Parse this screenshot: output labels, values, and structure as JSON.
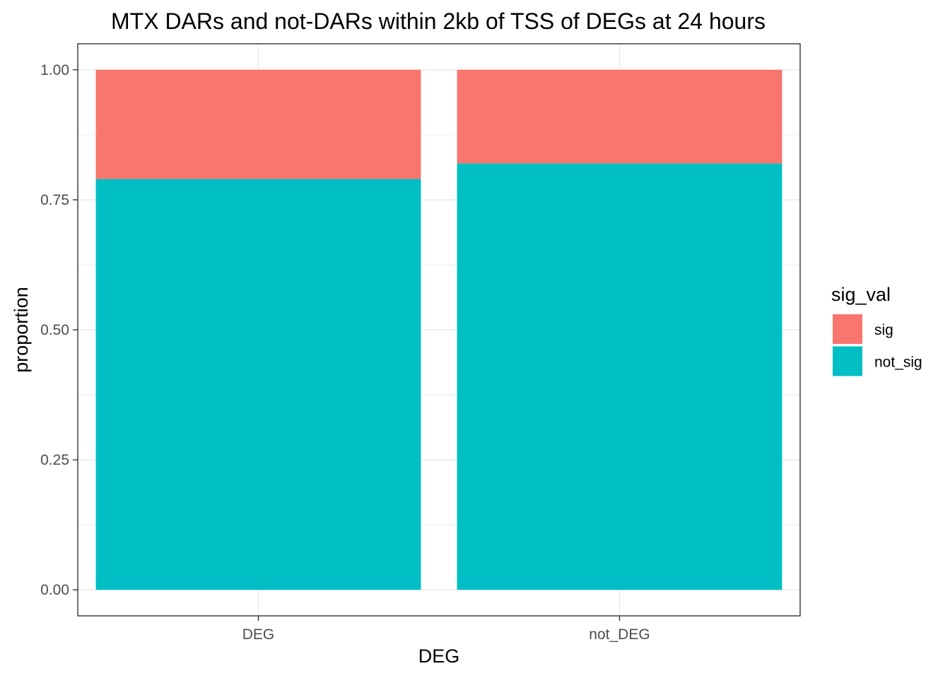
{
  "chart_data": {
    "type": "bar",
    "stacked": true,
    "title": "MTX DARs and not-DARs within 2kb of TSS of DEGs at 24 hours",
    "xlabel": "DEG",
    "ylabel": "proportion",
    "categories": [
      "DEG",
      "not_DEG"
    ],
    "series": [
      {
        "name": "not_sig",
        "values": [
          0.79,
          0.82
        ],
        "color": "#00BFC4"
      },
      {
        "name": "sig",
        "values": [
          0.21,
          0.18
        ],
        "color": "#F8766D"
      }
    ],
    "ylim": [
      -0.05,
      1.05
    ],
    "yticks": [
      0,
      0.25,
      0.5,
      0.75,
      1
    ],
    "ytick_labels": [
      "0.00",
      "0.25",
      "0.50",
      "0.75",
      "1.00"
    ],
    "grid": true,
    "legend": {
      "title": "sig_val",
      "position": "right",
      "items": [
        {
          "label": "sig",
          "color": "#F8766D"
        },
        {
          "label": "not_sig",
          "color": "#00BFC4"
        }
      ]
    }
  }
}
